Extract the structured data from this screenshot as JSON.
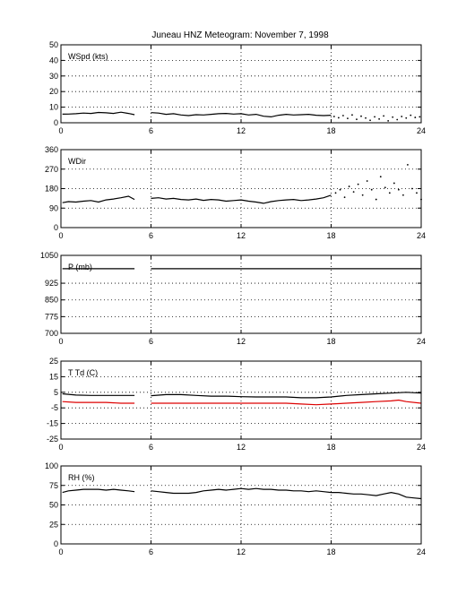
{
  "title": "Juneau HNZ Meteogram:  November  7, 1998",
  "chart_data": [
    {
      "type": "line",
      "label": "WSpd (kts)",
      "ylim": [
        0,
        50
      ],
      "yticks": [
        0,
        10,
        20,
        30,
        40,
        50
      ],
      "xlim": [
        0,
        24
      ],
      "xticks": [
        0,
        6,
        12,
        18,
        24
      ],
      "grid": true,
      "series": [
        {
          "color": "#000000",
          "style": "line",
          "segments": [
            [
              [
                0.1,
                5.5
              ],
              [
                0.5,
                5.6
              ],
              [
                1,
                5.8
              ],
              [
                1.5,
                6.2
              ],
              [
                2,
                6.0
              ],
              [
                2.5,
                6.6
              ],
              [
                3,
                6.4
              ],
              [
                3.5,
                6.0
              ],
              [
                4,
                6.8
              ],
              [
                4.5,
                6.0
              ],
              [
                4.9,
                5.2
              ]
            ],
            [
              [
                6.0,
                6.5
              ],
              [
                6.5,
                6.2
              ],
              [
                7,
                5.4
              ],
              [
                7.5,
                5.8
              ],
              [
                8,
                5.0
              ],
              [
                8.5,
                4.6
              ],
              [
                9,
                5.2
              ],
              [
                9.5,
                5.0
              ],
              [
                10,
                5.4
              ],
              [
                10.5,
                5.8
              ],
              [
                11,
                6.0
              ],
              [
                11.5,
                5.6
              ],
              [
                12,
                5.8
              ],
              [
                12.5,
                5.0
              ],
              [
                13,
                5.4
              ],
              [
                13.5,
                4.2
              ],
              [
                14,
                3.8
              ],
              [
                14.5,
                4.8
              ],
              [
                15,
                5.4
              ],
              [
                15.5,
                5.0
              ],
              [
                16,
                5.2
              ],
              [
                16.5,
                5.4
              ],
              [
                17,
                4.8
              ],
              [
                17.5,
                4.6
              ],
              [
                18,
                4.8
              ]
            ]
          ]
        },
        {
          "color": "#000000",
          "style": "dots",
          "segments": [
            [
              [
                18.2,
                4.0
              ],
              [
                18.5,
                3.2
              ],
              [
                18.8,
                4.6
              ],
              [
                19.1,
                2.8
              ],
              [
                19.4,
                5.0
              ],
              [
                19.7,
                2.2
              ],
              [
                20.0,
                4.2
              ],
              [
                20.3,
                3.0
              ],
              [
                20.6,
                1.6
              ],
              [
                20.9,
                3.8
              ],
              [
                21.2,
                2.4
              ],
              [
                21.5,
                4.4
              ],
              [
                21.8,
                1.2
              ],
              [
                22.1,
                3.6
              ],
              [
                22.4,
                2.0
              ],
              [
                22.7,
                4.0
              ],
              [
                23.0,
                3.0
              ],
              [
                23.3,
                4.8
              ],
              [
                23.6,
                3.4
              ],
              [
                23.9,
                3.8
              ]
            ]
          ]
        }
      ]
    },
    {
      "type": "line",
      "label": "WDir",
      "ylim": [
        0,
        360
      ],
      "yticks": [
        0,
        90,
        180,
        270,
        360
      ],
      "xlim": [
        0,
        24
      ],
      "xticks": [
        0,
        6,
        12,
        18,
        24
      ],
      "grid": true,
      "series": [
        {
          "color": "#000000",
          "style": "line",
          "segments": [
            [
              [
                0.1,
                115
              ],
              [
                0.5,
                120
              ],
              [
                1,
                118
              ],
              [
                1.5,
                122
              ],
              [
                2,
                125
              ],
              [
                2.5,
                118
              ],
              [
                3,
                128
              ],
              [
                3.5,
                132
              ],
              [
                4,
                138
              ],
              [
                4.5,
                145
              ],
              [
                4.9,
                130
              ]
            ],
            [
              [
                6.0,
                135
              ],
              [
                6.5,
                138
              ],
              [
                7,
                132
              ],
              [
                7.5,
                135
              ],
              [
                8,
                130
              ],
              [
                8.5,
                128
              ],
              [
                9,
                132
              ],
              [
                9.5,
                126
              ],
              [
                10,
                130
              ],
              [
                10.5,
                128
              ],
              [
                11,
                122
              ],
              [
                11.5,
                125
              ],
              [
                12,
                128
              ],
              [
                12.5,
                122
              ],
              [
                13,
                118
              ],
              [
                13.5,
                112
              ],
              [
                14,
                120
              ],
              [
                14.5,
                125
              ],
              [
                15,
                128
              ],
              [
                15.5,
                130
              ],
              [
                16,
                125
              ],
              [
                16.5,
                128
              ],
              [
                17,
                132
              ],
              [
                17.5,
                138
              ],
              [
                18,
                150
              ]
            ]
          ]
        },
        {
          "color": "#000000",
          "style": "dots",
          "segments": [
            [
              [
                18.3,
                160
              ],
              [
                18.6,
                175
              ],
              [
                18.9,
                140
              ],
              [
                19.2,
                190
              ],
              [
                19.5,
                165
              ],
              [
                19.8,
                200
              ],
              [
                20.1,
                150
              ],
              [
                20.4,
                215
              ],
              [
                20.7,
                175
              ],
              [
                21.0,
                130
              ],
              [
                21.3,
                235
              ],
              [
                21.6,
                185
              ],
              [
                21.9,
                160
              ],
              [
                22.2,
                205
              ],
              [
                22.5,
                175
              ],
              [
                22.8,
                150
              ],
              [
                23.1,
                290
              ],
              [
                23.4,
                180
              ],
              [
                23.7,
                160
              ],
              [
                24.0,
                130
              ]
            ]
          ]
        }
      ]
    },
    {
      "type": "line",
      "label": "P (mb)",
      "ylim": [
        700,
        1050
      ],
      "yticks": [
        700,
        775,
        850,
        925,
        1050
      ],
      "xlim": [
        0,
        24
      ],
      "xticks": [
        0,
        6,
        12,
        18,
        24
      ],
      "grid": true,
      "series": [
        {
          "color": "#000000",
          "style": "line",
          "segments": [
            [
              [
                0.1,
                990
              ],
              [
                4.9,
                990
              ]
            ],
            [
              [
                6.0,
                990
              ],
              [
                24,
                990
              ]
            ]
          ]
        }
      ]
    },
    {
      "type": "line",
      "label": "T Td (C)",
      "ylim": [
        -25,
        25
      ],
      "yticks": [
        -25,
        -15,
        -5,
        5,
        15,
        25
      ],
      "xlim": [
        0,
        24
      ],
      "xticks": [
        0,
        6,
        12,
        18,
        24
      ],
      "grid": true,
      "series": [
        {
          "color": "#000000",
          "style": "line",
          "segments": [
            [
              [
                0.1,
                4.0
              ],
              [
                1,
                3.2
              ],
              [
                2,
                3.0
              ],
              [
                3,
                3.0
              ],
              [
                4,
                3.0
              ],
              [
                4.9,
                3.0
              ]
            ],
            [
              [
                6.0,
                2.8
              ],
              [
                7,
                3.5
              ],
              [
                8,
                3.5
              ],
              [
                9,
                3.0
              ],
              [
                10,
                2.5
              ],
              [
                11,
                2.5
              ],
              [
                12,
                2.2
              ],
              [
                13,
                2.0
              ],
              [
                14,
                2.0
              ],
              [
                15,
                2.0
              ],
              [
                16,
                1.5
              ],
              [
                17,
                1.5
              ],
              [
                18,
                2.0
              ],
              [
                19,
                3.0
              ],
              [
                20,
                3.5
              ],
              [
                21,
                4.0
              ],
              [
                22,
                4.5
              ],
              [
                23,
                5.0
              ],
              [
                24,
                4.5
              ]
            ]
          ]
        },
        {
          "color": "#dd0000",
          "style": "line",
          "segments": [
            [
              [
                0.1,
                -1.0
              ],
              [
                1,
                -1.5
              ],
              [
                2,
                -1.5
              ],
              [
                3,
                -1.5
              ],
              [
                4,
                -2.0
              ],
              [
                4.9,
                -2.0
              ]
            ],
            [
              [
                6.0,
                -2.0
              ],
              [
                7,
                -2.0
              ],
              [
                8,
                -2.0
              ],
              [
                9,
                -2.0
              ],
              [
                10,
                -2.0
              ],
              [
                11,
                -2.0
              ],
              [
                12,
                -2.0
              ],
              [
                13,
                -2.0
              ],
              [
                14,
                -2.0
              ],
              [
                15,
                -2.0
              ],
              [
                16,
                -2.5
              ],
              [
                17,
                -3.0
              ],
              [
                18,
                -2.5
              ],
              [
                19,
                -2.0
              ],
              [
                20,
                -1.5
              ],
              [
                21,
                -1.0
              ],
              [
                22,
                -0.5
              ],
              [
                22.5,
                0.0
              ],
              [
                23,
                -1.0
              ],
              [
                24,
                -2.0
              ]
            ]
          ]
        }
      ]
    },
    {
      "type": "line",
      "label": "RH (%)",
      "ylim": [
        0,
        100
      ],
      "yticks": [
        0,
        25,
        50,
        75,
        100
      ],
      "xlim": [
        0,
        24
      ],
      "xticks": [
        0,
        6,
        12,
        18,
        24
      ],
      "grid": true,
      "series": [
        {
          "color": "#000000",
          "style": "line",
          "segments": [
            [
              [
                0.1,
                66
              ],
              [
                0.5,
                68
              ],
              [
                1,
                69
              ],
              [
                1.5,
                70
              ],
              [
                2,
                70
              ],
              [
                2.5,
                70
              ],
              [
                3,
                69
              ],
              [
                3.5,
                70
              ],
              [
                4,
                69
              ],
              [
                4.5,
                68
              ],
              [
                4.9,
                67
              ]
            ],
            [
              [
                6.0,
                68
              ],
              [
                6.5,
                67
              ],
              [
                7,
                66
              ],
              [
                7.5,
                65
              ],
              [
                8,
                65
              ],
              [
                8.5,
                65
              ],
              [
                9,
                66
              ],
              [
                9.5,
                68
              ],
              [
                10,
                69
              ],
              [
                10.5,
                70
              ],
              [
                11,
                69
              ],
              [
                11.5,
                70
              ],
              [
                12,
                71
              ],
              [
                12.5,
                70
              ],
              [
                13,
                71
              ],
              [
                13.5,
                70
              ],
              [
                14,
                70
              ],
              [
                14.5,
                69
              ],
              [
                15,
                69
              ],
              [
                15.5,
                68
              ],
              [
                16,
                68
              ],
              [
                16.5,
                67
              ],
              [
                17,
                68
              ],
              [
                17.5,
                67
              ],
              [
                18,
                66
              ],
              [
                18.5,
                66
              ],
              [
                19,
                65
              ],
              [
                19.5,
                64
              ],
              [
                20,
                64
              ],
              [
                20.5,
                63
              ],
              [
                21,
                62
              ],
              [
                21.5,
                64
              ],
              [
                22,
                66
              ],
              [
                22.5,
                64
              ],
              [
                23,
                60
              ],
              [
                23.5,
                59
              ],
              [
                24,
                58
              ]
            ]
          ]
        }
      ]
    }
  ]
}
